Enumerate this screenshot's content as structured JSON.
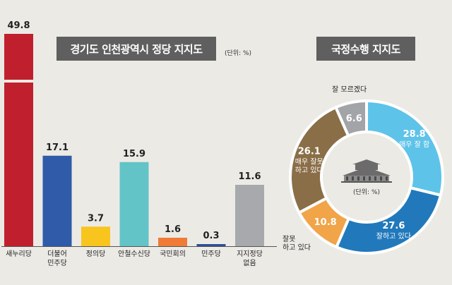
{
  "chart_data": [
    {
      "type": "bar",
      "title": "경기도 인천광역시 정당 지지도",
      "unit": "(단위: %)",
      "categories": [
        "새누리당",
        "더불어\n민주당",
        "정의당",
        "안철수신당",
        "국민회의",
        "민주당",
        "지지정당\n없음"
      ],
      "values": [
        49.8,
        17.1,
        3.7,
        15.9,
        1.6,
        0.3,
        11.6
      ],
      "colors": [
        "#c0202e",
        "#2f5ba8",
        "#f8c51e",
        "#62c4c7",
        "#ef7b36",
        "#2c4f98",
        "#a7a9ac"
      ],
      "axis_break_on_first_bar": true
    },
    {
      "type": "pie",
      "donut": true,
      "title": "국정수행 지지도",
      "unit": "(단위: %)",
      "slices": [
        {
          "label": "매우 잘 함",
          "value": 28.8,
          "color": "#5ec3e8"
        },
        {
          "label": "잘하고 있다",
          "value": 27.6,
          "color": "#2179bb"
        },
        {
          "label": "잘못\n하고 있다",
          "value": 10.8,
          "color": "#f1a448"
        },
        {
          "label": "매우 잘못\n하고 있다",
          "value": 26.1,
          "color": "#8a6e47"
        },
        {
          "label": "잘 모르겠다",
          "value": 6.6,
          "color": "#a2a4a7"
        }
      ]
    }
  ]
}
